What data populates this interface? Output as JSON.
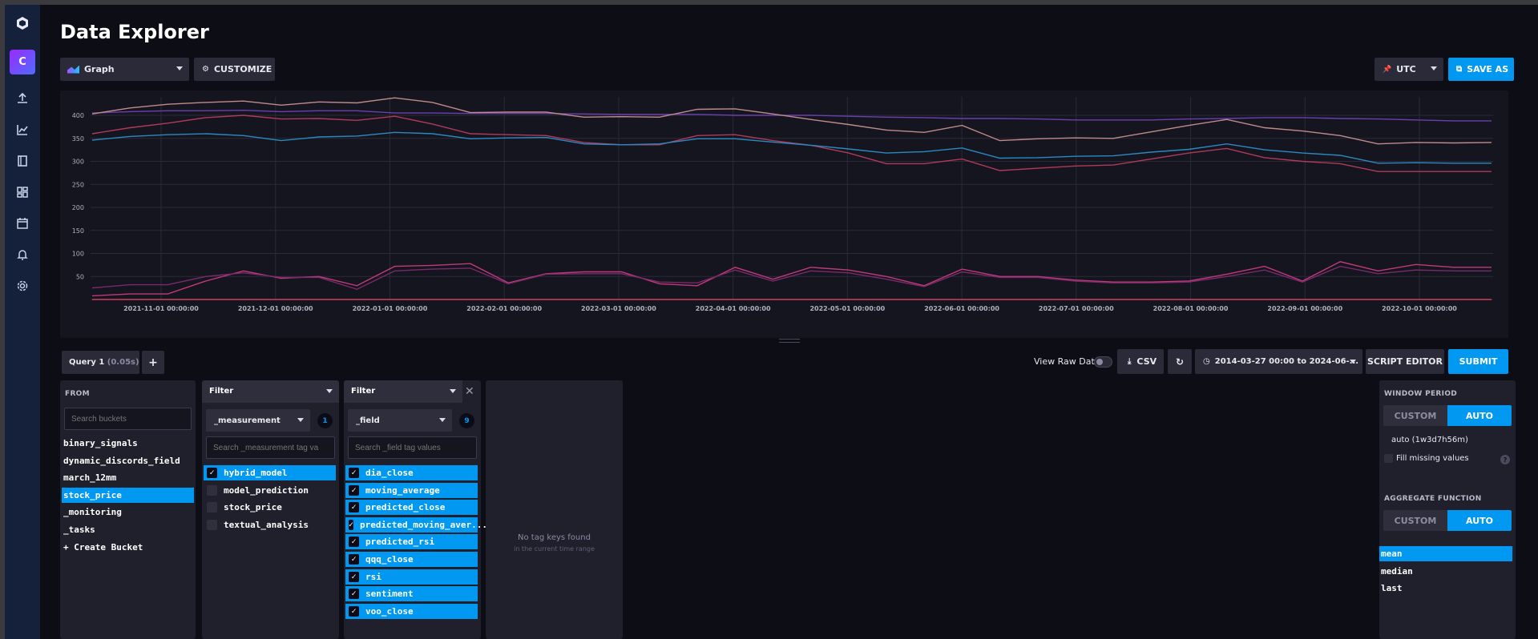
{
  "header": {
    "title": "Data Explorer"
  },
  "toolbar": {
    "graph_type": "Graph",
    "customize": "CUSTOMIZE",
    "timezone": "UTC",
    "save_as": "SAVE AS"
  },
  "chart_data": {
    "type": "line",
    "ylim": [
      0,
      440
    ],
    "y_ticks": [
      50,
      100,
      150,
      200,
      250,
      300,
      350,
      400
    ],
    "x_tick_labels": [
      "2021-11-01 00:00:00",
      "2021-12-01 00:00:00",
      "2022-01-01 00:00:00",
      "2022-02-01 00:00:00",
      "2022-03-01 00:00:00",
      "2022-04-01 00:00:00",
      "2022-05-01 00:00:00",
      "2022-06-01 00:00:00",
      "2022-07-01 00:00:00",
      "2022-08-01 00:00:00",
      "2022-09-01 00:00:00",
      "2022-10-01 00:00:00"
    ],
    "series": [
      {
        "color": "#6a3fb0",
        "values": [
          405,
          408,
          410,
          410,
          411,
          408,
          410,
          410,
          405,
          405,
          404,
          404,
          404,
          403,
          402,
          402,
          402,
          400,
          400,
          400,
          398,
          396,
          395,
          393,
          393,
          392,
          390,
          390,
          390,
          392,
          393,
          395,
          395,
          393,
          392,
          390,
          388,
          388
        ]
      },
      {
        "color": "#c08a8a",
        "values": [
          403,
          416,
          424,
          428,
          431,
          422,
          429,
          427,
          438,
          428,
          406,
          407,
          407,
          396,
          397,
          396,
          413,
          414,
          403,
          391,
          380,
          368,
          363,
          378,
          345,
          349,
          351,
          350,
          364,
          378,
          391,
          373,
          366,
          356,
          338,
          341,
          340,
          341
        ]
      },
      {
        "color": "#b03a5a",
        "values": [
          360,
          373,
          383,
          395,
          400,
          392,
          393,
          389,
          398,
          381,
          360,
          358,
          356,
          341,
          336,
          336,
          356,
          358,
          345,
          335,
          318,
          295,
          295,
          305,
          280,
          285,
          290,
          292,
          305,
          318,
          328,
          308,
          300,
          295,
          278,
          278,
          278,
          278
        ]
      },
      {
        "color": "#2a8ac0",
        "values": [
          346,
          354,
          358,
          360,
          356,
          345,
          353,
          355,
          363,
          360,
          349,
          351,
          352,
          338,
          336,
          338,
          349,
          349,
          342,
          335,
          327,
          318,
          321,
          329,
          307,
          308,
          311,
          312,
          320,
          326,
          338,
          325,
          318,
          313,
          296,
          297,
          296,
          296
        ]
      },
      {
        "color": "#c03a7a",
        "values": [
          8,
          12,
          12,
          40,
          62,
          46,
          50,
          30,
          72,
          74,
          78,
          36,
          56,
          60,
          60,
          34,
          30,
          70,
          44,
          70,
          64,
          50,
          30,
          66,
          50,
          50,
          42,
          38,
          38,
          40,
          55,
          72,
          40,
          82,
          62,
          76,
          70,
          70
        ]
      },
      {
        "color": "#7a2a6a",
        "values": [
          25,
          32,
          32,
          50,
          58,
          48,
          48,
          22,
          62,
          66,
          68,
          34,
          55,
          56,
          56,
          38,
          36,
          64,
          40,
          62,
          58,
          44,
          28,
          60,
          48,
          48,
          40,
          36,
          36,
          38,
          50,
          64,
          38,
          72,
          56,
          64,
          62,
          62
        ]
      },
      {
        "color": "#d04060",
        "values": [
          0,
          0,
          0,
          0,
          0,
          0,
          0,
          0,
          0,
          0,
          0,
          0,
          0,
          0,
          0,
          0,
          0,
          0,
          0,
          0,
          0,
          0,
          0,
          0,
          0,
          0,
          0,
          0,
          0,
          0,
          0,
          0,
          0,
          0,
          0,
          0,
          0,
          0
        ]
      }
    ]
  },
  "query": {
    "tab_label": "Query 1",
    "tab_time": "(0.05s)",
    "add_label": "+",
    "view_raw": "View Raw Data",
    "csv": "CSV",
    "time_range": "2014-03-27 00:00 to 2024-06-...",
    "script_editor": "SCRIPT EDITOR",
    "submit": "SUBMIT"
  },
  "from": {
    "heading": "FROM",
    "search_placeholder": "Search buckets",
    "buckets": [
      "binary_signals",
      "dynamic_discords_field",
      "march_12mm",
      "stock_price",
      "_monitoring",
      "_tasks",
      "+ Create Bucket"
    ]
  },
  "filter1": {
    "heading": "Filter",
    "key": "_measurement",
    "count": "1",
    "search_placeholder": "Search _measurement tag va",
    "items": [
      "hybrid_model",
      "model_prediction",
      "stock_price",
      "textual_analysis"
    ]
  },
  "filter2": {
    "heading": "Filter",
    "key": "_field",
    "count": "9",
    "search_placeholder": "Search _field tag values",
    "items": [
      "dia_close",
      "moving_average",
      "predicted_close",
      "predicted_moving_aver...",
      "predicted_rsi",
      "qqq_close",
      "rsi",
      "sentiment",
      "voo_close"
    ]
  },
  "empty": {
    "title": "No tag keys found",
    "sub": "in the current time range"
  },
  "window": {
    "heading": "WINDOW PERIOD",
    "custom": "CUSTOM",
    "auto": "AUTO",
    "period": "auto (1w3d7h56m)",
    "fill_missing": "Fill missing values",
    "help": "?",
    "agg_heading": "AGGREGATE FUNCTION",
    "functions": [
      "mean",
      "median",
      "last"
    ]
  }
}
